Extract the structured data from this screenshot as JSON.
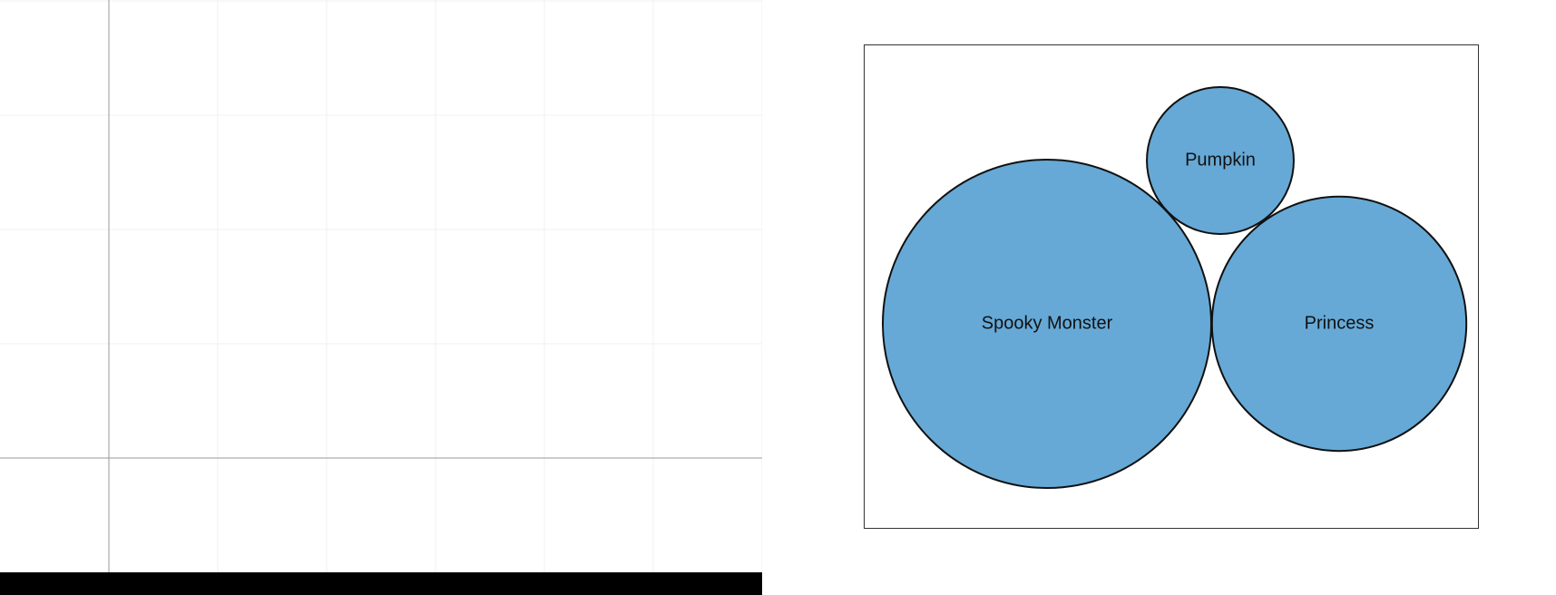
{
  "colors": {
    "bubble_fill": "#66a9d6",
    "bubble_stroke": "#111111",
    "grid_line": "#f0f0f0",
    "axis_line": "#999999",
    "bottom_bar": "#000000"
  },
  "chart_data": {
    "type": "bubble-pack",
    "title": "",
    "legend": "none",
    "bubbles": [
      {
        "label": "Spooky Monster",
        "value": 100
      },
      {
        "label": "Princess",
        "value": 60
      },
      {
        "label": "Pumpkin",
        "value": 20
      }
    ]
  }
}
